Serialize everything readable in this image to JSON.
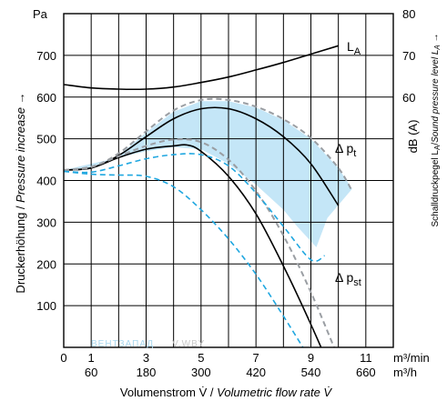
{
  "chart_data": {
    "type": "line",
    "title": "",
    "xlabel": {
      "prefix": "Volumenstrom V̇ / ",
      "italic": "Volumetric flow rate V̇"
    },
    "ylabel": {
      "prefix": "Druckerhöhung / ",
      "italic": "Pressure increase",
      "suffix": " →"
    },
    "y2label": "dB (A)",
    "y2label_small": {
      "prefix": "Schalldruckpegel L",
      "sub": "A",
      "mid": "/",
      "italic": "Sound pressure level L",
      "sub2": "A",
      "suffix": " →"
    },
    "x_unit_top": "m³/min",
    "x_unit_bottom": "m³/h",
    "y_unit": "Pa",
    "xlim": [
      0,
      12
    ],
    "ylim": [
      0,
      800
    ],
    "y2lim": [
      0,
      80
    ],
    "x_ticks_top": [
      "0",
      "1",
      "3",
      "5",
      "7",
      "9",
      "11"
    ],
    "x_ticks_bottom": [
      "60",
      "180",
      "300",
      "420",
      "540",
      "660"
    ],
    "y_ticks": [
      "100",
      "200",
      "300",
      "400",
      "500",
      "600",
      "700"
    ],
    "y2_ticks": [
      "60",
      "70",
      "80"
    ],
    "grid": true,
    "band": {
      "name": "shaded operating range",
      "upper": [
        [
          0,
          425
        ],
        [
          1,
          430
        ],
        [
          2,
          460
        ],
        [
          3,
          515
        ],
        [
          4,
          565
        ],
        [
          5,
          590
        ],
        [
          6,
          590
        ],
        [
          7,
          575
        ],
        [
          8,
          545
        ],
        [
          9,
          500
        ],
        [
          10,
          430
        ],
        [
          10.5,
          380
        ]
      ],
      "lower": [
        [
          10.5,
          380
        ],
        [
          9.6,
          310
        ],
        [
          9.2,
          240
        ],
        [
          8.5,
          290
        ],
        [
          8,
          330
        ],
        [
          7,
          390
        ],
        [
          6,
          440
        ],
        [
          5,
          475
        ],
        [
          4,
          480
        ],
        [
          3,
          470
        ],
        [
          2,
          455
        ],
        [
          1,
          440
        ],
        [
          0,
          425
        ]
      ]
    },
    "series": [
      {
        "name": "L",
        "sub": "A",
        "axis": "right",
        "style": "solid",
        "x": [
          0,
          1,
          2,
          3,
          4,
          5,
          6,
          7,
          8,
          9,
          10
        ],
        "y": [
          63,
          62.2,
          61.9,
          61.9,
          62.4,
          63.5,
          64.8,
          66.5,
          68.3,
          70.3,
          72.3
        ]
      },
      {
        "name": "Δ p",
        "sub": "t",
        "axis": "left",
        "style": "solid",
        "x": [
          0,
          1,
          2,
          3,
          4,
          5,
          6,
          7,
          8,
          9,
          10
        ],
        "y": [
          425,
          430,
          460,
          505,
          548,
          572,
          572,
          548,
          505,
          440,
          340
        ]
      },
      {
        "name": "",
        "axis": "left",
        "style": "solid",
        "x": [
          0,
          1,
          2,
          3,
          4,
          4.5,
          5,
          6,
          7,
          8,
          9,
          9.7
        ],
        "y": [
          425,
          430,
          455,
          475,
          483,
          485,
          470,
          410,
          320,
          195,
          55,
          -50
        ]
      },
      {
        "name": "",
        "axis": "left",
        "style": "dashed-gray",
        "x": [
          0,
          1,
          2,
          3,
          4,
          5,
          6,
          7,
          8,
          9,
          10,
          10.5
        ],
        "y": [
          425,
          432,
          465,
          518,
          568,
          593,
          593,
          577,
          547,
          502,
          430,
          375
        ]
      },
      {
        "name": "",
        "axis": "left",
        "style": "dashed-gray",
        "x": [
          0,
          1,
          2,
          3,
          4,
          5,
          6,
          7,
          8,
          9,
          10
        ],
        "y": [
          425,
          433,
          458,
          483,
          498,
          492,
          450,
          375,
          268,
          132,
          -25
        ]
      },
      {
        "name": "Δ p",
        "sub": "st",
        "axis": "left",
        "style": "dashed-blue",
        "x": [
          0,
          1,
          2,
          3,
          4,
          5,
          6,
          7,
          8,
          9,
          9.5
        ],
        "y": [
          422,
          420,
          435,
          452,
          462,
          462,
          435,
          370,
          290,
          210,
          220
        ]
      },
      {
        "name": "",
        "axis": "left",
        "style": "dashed-blue",
        "x": [
          0,
          1,
          2,
          3,
          4,
          5,
          6,
          7,
          8,
          9,
          9.3
        ],
        "y": [
          422,
          415,
          413,
          410,
          385,
          330,
          260,
          175,
          75,
          -30,
          -50
        ]
      }
    ]
  },
  "watermark": {
    "left": "ВЕНТЗАПАД",
    "right": "V.WBY"
  },
  "colors": {
    "band": "#c4e6f7",
    "curve": "#000000",
    "dashed_gray": "#9a9ea3",
    "dashed_blue": "#1fa7e0",
    "grid": "#000000"
  }
}
